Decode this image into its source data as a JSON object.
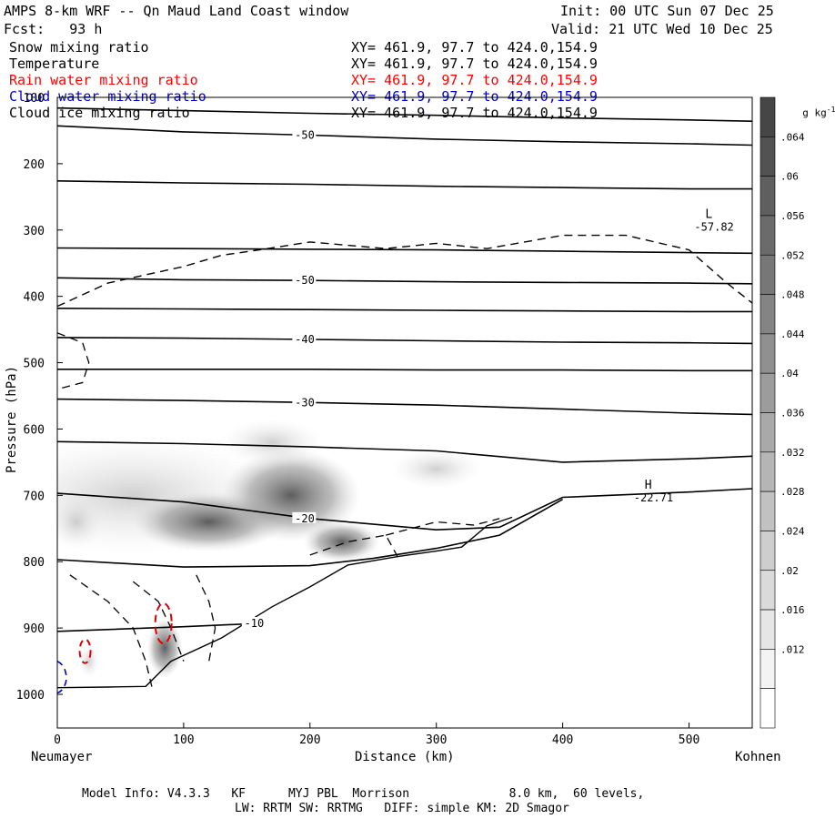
{
  "header": {
    "title": "AMPS 8-km WRF -- Qn Maud Land Coast window",
    "init": "Init: 00 UTC Sun 07 Dec 25",
    "fcst": "Fcst:   93 h",
    "valid": "Valid: 21 UTC Wed 10 Dec 25"
  },
  "fields": [
    {
      "name": "Snow mixing ratio",
      "xy": "XY= 461.9, 97.7 to 424.0,154.9",
      "color": "#000000"
    },
    {
      "name": "Temperature",
      "xy": "XY= 461.9, 97.7 to 424.0,154.9",
      "color": "#000000"
    },
    {
      "name": "Rain water mixing ratio",
      "xy": "XY= 461.9, 97.7 to 424.0,154.9",
      "color": "#ff0000"
    },
    {
      "name": "Cloud water mixing ratio",
      "xy": "XY= 461.9, 97.7 to 424.0,154.9",
      "color": "#0000cc"
    },
    {
      "name": "Cloud ice mixing ratio",
      "xy": "XY= 461.9, 97.7 to 424.0,154.9",
      "color": "#000000"
    }
  ],
  "axes": {
    "ylabel": "Pressure (hPa)",
    "xlabel": "Distance (km)",
    "left_endpoint": "Neumayer",
    "right_endpoint": "Kohnen"
  },
  "colorbar": {
    "unit": "g kg",
    "unit_sup": "-1",
    "ticks": [
      ".064",
      ".06",
      ".056",
      ".052",
      ".048",
      ".044",
      ".04",
      ".036",
      ".032",
      ".028",
      ".024",
      ".02",
      ".016",
      ".012"
    ]
  },
  "footer": {
    "line1": "Model Info: V4.3.3   KF      MYJ PBL  Morrison              8.0 km,  60 levels,",
    "line2": "LW: RRTM SW: RRTMG   DIFF: simple KM: 2D Smagor"
  },
  "chart_data": {
    "type": "cross-section contour",
    "x_range": [
      0,
      550
    ],
    "y_range_hPa": [
      1050,
      100
    ],
    "xticks": [
      0,
      100,
      200,
      300,
      400,
      500
    ],
    "yticks": [
      100,
      200,
      300,
      400,
      500,
      600,
      700,
      800,
      900,
      1000
    ],
    "isotherms": [
      {
        "label": "",
        "points": [
          [
            0,
            116
          ],
          [
            100,
            120
          ],
          [
            200,
            124
          ],
          [
            300,
            127
          ],
          [
            400,
            131
          ],
          [
            500,
            134
          ],
          [
            550,
            136
          ]
        ]
      },
      {
        "label": "-50",
        "points": [
          [
            0,
            143
          ],
          [
            100,
            152
          ],
          [
            200,
            157
          ],
          [
            300,
            163
          ],
          [
            400,
            167
          ],
          [
            500,
            170
          ],
          [
            550,
            172
          ]
        ]
      },
      {
        "label": "",
        "points": [
          [
            0,
            226
          ],
          [
            100,
            229
          ],
          [
            200,
            231
          ],
          [
            300,
            234
          ],
          [
            400,
            236
          ],
          [
            500,
            238
          ],
          [
            550,
            238
          ]
        ]
      },
      {
        "label": "",
        "points": [
          [
            0,
            327
          ],
          [
            100,
            328
          ],
          [
            200,
            329
          ],
          [
            300,
            330
          ],
          [
            400,
            332
          ],
          [
            500,
            334
          ],
          [
            550,
            335
          ]
        ]
      },
      {
        "label": "-50",
        "points": [
          [
            0,
            372
          ],
          [
            100,
            375
          ],
          [
            200,
            376
          ],
          [
            300,
            378
          ],
          [
            400,
            379
          ],
          [
            500,
            380
          ],
          [
            550,
            381
          ]
        ]
      },
      {
        "label": "",
        "points": [
          [
            0,
            418
          ],
          [
            100,
            419
          ],
          [
            200,
            420
          ],
          [
            300,
            421
          ],
          [
            400,
            422
          ],
          [
            500,
            423
          ],
          [
            550,
            423
          ]
        ]
      },
      {
        "label": "-40",
        "points": [
          [
            0,
            462
          ],
          [
            100,
            463
          ],
          [
            200,
            465
          ],
          [
            300,
            467
          ],
          [
            400,
            469
          ],
          [
            500,
            470
          ],
          [
            550,
            471
          ]
        ]
      },
      {
        "label": "",
        "points": [
          [
            0,
            510
          ],
          [
            100,
            510
          ],
          [
            200,
            510
          ],
          [
            300,
            511
          ],
          [
            400,
            511
          ],
          [
            500,
            512
          ],
          [
            550,
            512
          ]
        ]
      },
      {
        "label": "-30",
        "points": [
          [
            0,
            555
          ],
          [
            100,
            557
          ],
          [
            200,
            560
          ],
          [
            300,
            564
          ],
          [
            400,
            570
          ],
          [
            500,
            576
          ],
          [
            550,
            578
          ]
        ]
      },
      {
        "label": "",
        "points": [
          [
            0,
            619
          ],
          [
            100,
            622
          ],
          [
            200,
            627
          ],
          [
            300,
            633
          ],
          [
            400,
            650
          ],
          [
            500,
            645
          ],
          [
            550,
            641
          ]
        ]
      },
      {
        "label": "-20",
        "points": [
          [
            0,
            697
          ],
          [
            100,
            710
          ],
          [
            200,
            735
          ],
          [
            300,
            752
          ],
          [
            350,
            748
          ],
          [
            400,
            703
          ],
          [
            500,
            695
          ],
          [
            550,
            690
          ]
        ]
      },
      {
        "label": "",
        "points": [
          [
            0,
            797
          ],
          [
            100,
            808
          ],
          [
            200,
            806
          ],
          [
            250,
            795
          ],
          [
            300,
            780
          ],
          [
            350,
            760
          ],
          [
            400,
            706
          ]
        ]
      },
      {
        "label": "-10",
        "points": [
          [
            0,
            905
          ],
          [
            100,
            898
          ],
          [
            160,
            893
          ]
        ]
      }
    ],
    "terrain_surface": [
      [
        0,
        990
      ],
      [
        40,
        989
      ],
      [
        70,
        988
      ],
      [
        90,
        950
      ],
      [
        130,
        915
      ],
      [
        170,
        868
      ],
      [
        200,
        838
      ],
      [
        230,
        805
      ],
      [
        270,
        792
      ],
      [
        300,
        784
      ],
      [
        320,
        778
      ],
      [
        340,
        746
      ],
      [
        360,
        733
      ]
    ],
    "snow_contour": [
      [
        0,
        415
      ],
      [
        40,
        380
      ],
      [
        100,
        355
      ],
      [
        130,
        338
      ],
      [
        160,
        330
      ],
      [
        200,
        318
      ],
      [
        260,
        328
      ],
      [
        300,
        320
      ],
      [
        340,
        328
      ],
      [
        400,
        308
      ],
      [
        450,
        308
      ],
      [
        500,
        330
      ],
      [
        530,
        380
      ],
      [
        550,
        410
      ]
    ],
    "special_labels": [
      {
        "text": "L",
        "sub": "-57.82",
        "x": 510,
        "p": 282
      },
      {
        "text": "H",
        "sub": "-22.71",
        "x": 462,
        "p": 690
      }
    ]
  }
}
